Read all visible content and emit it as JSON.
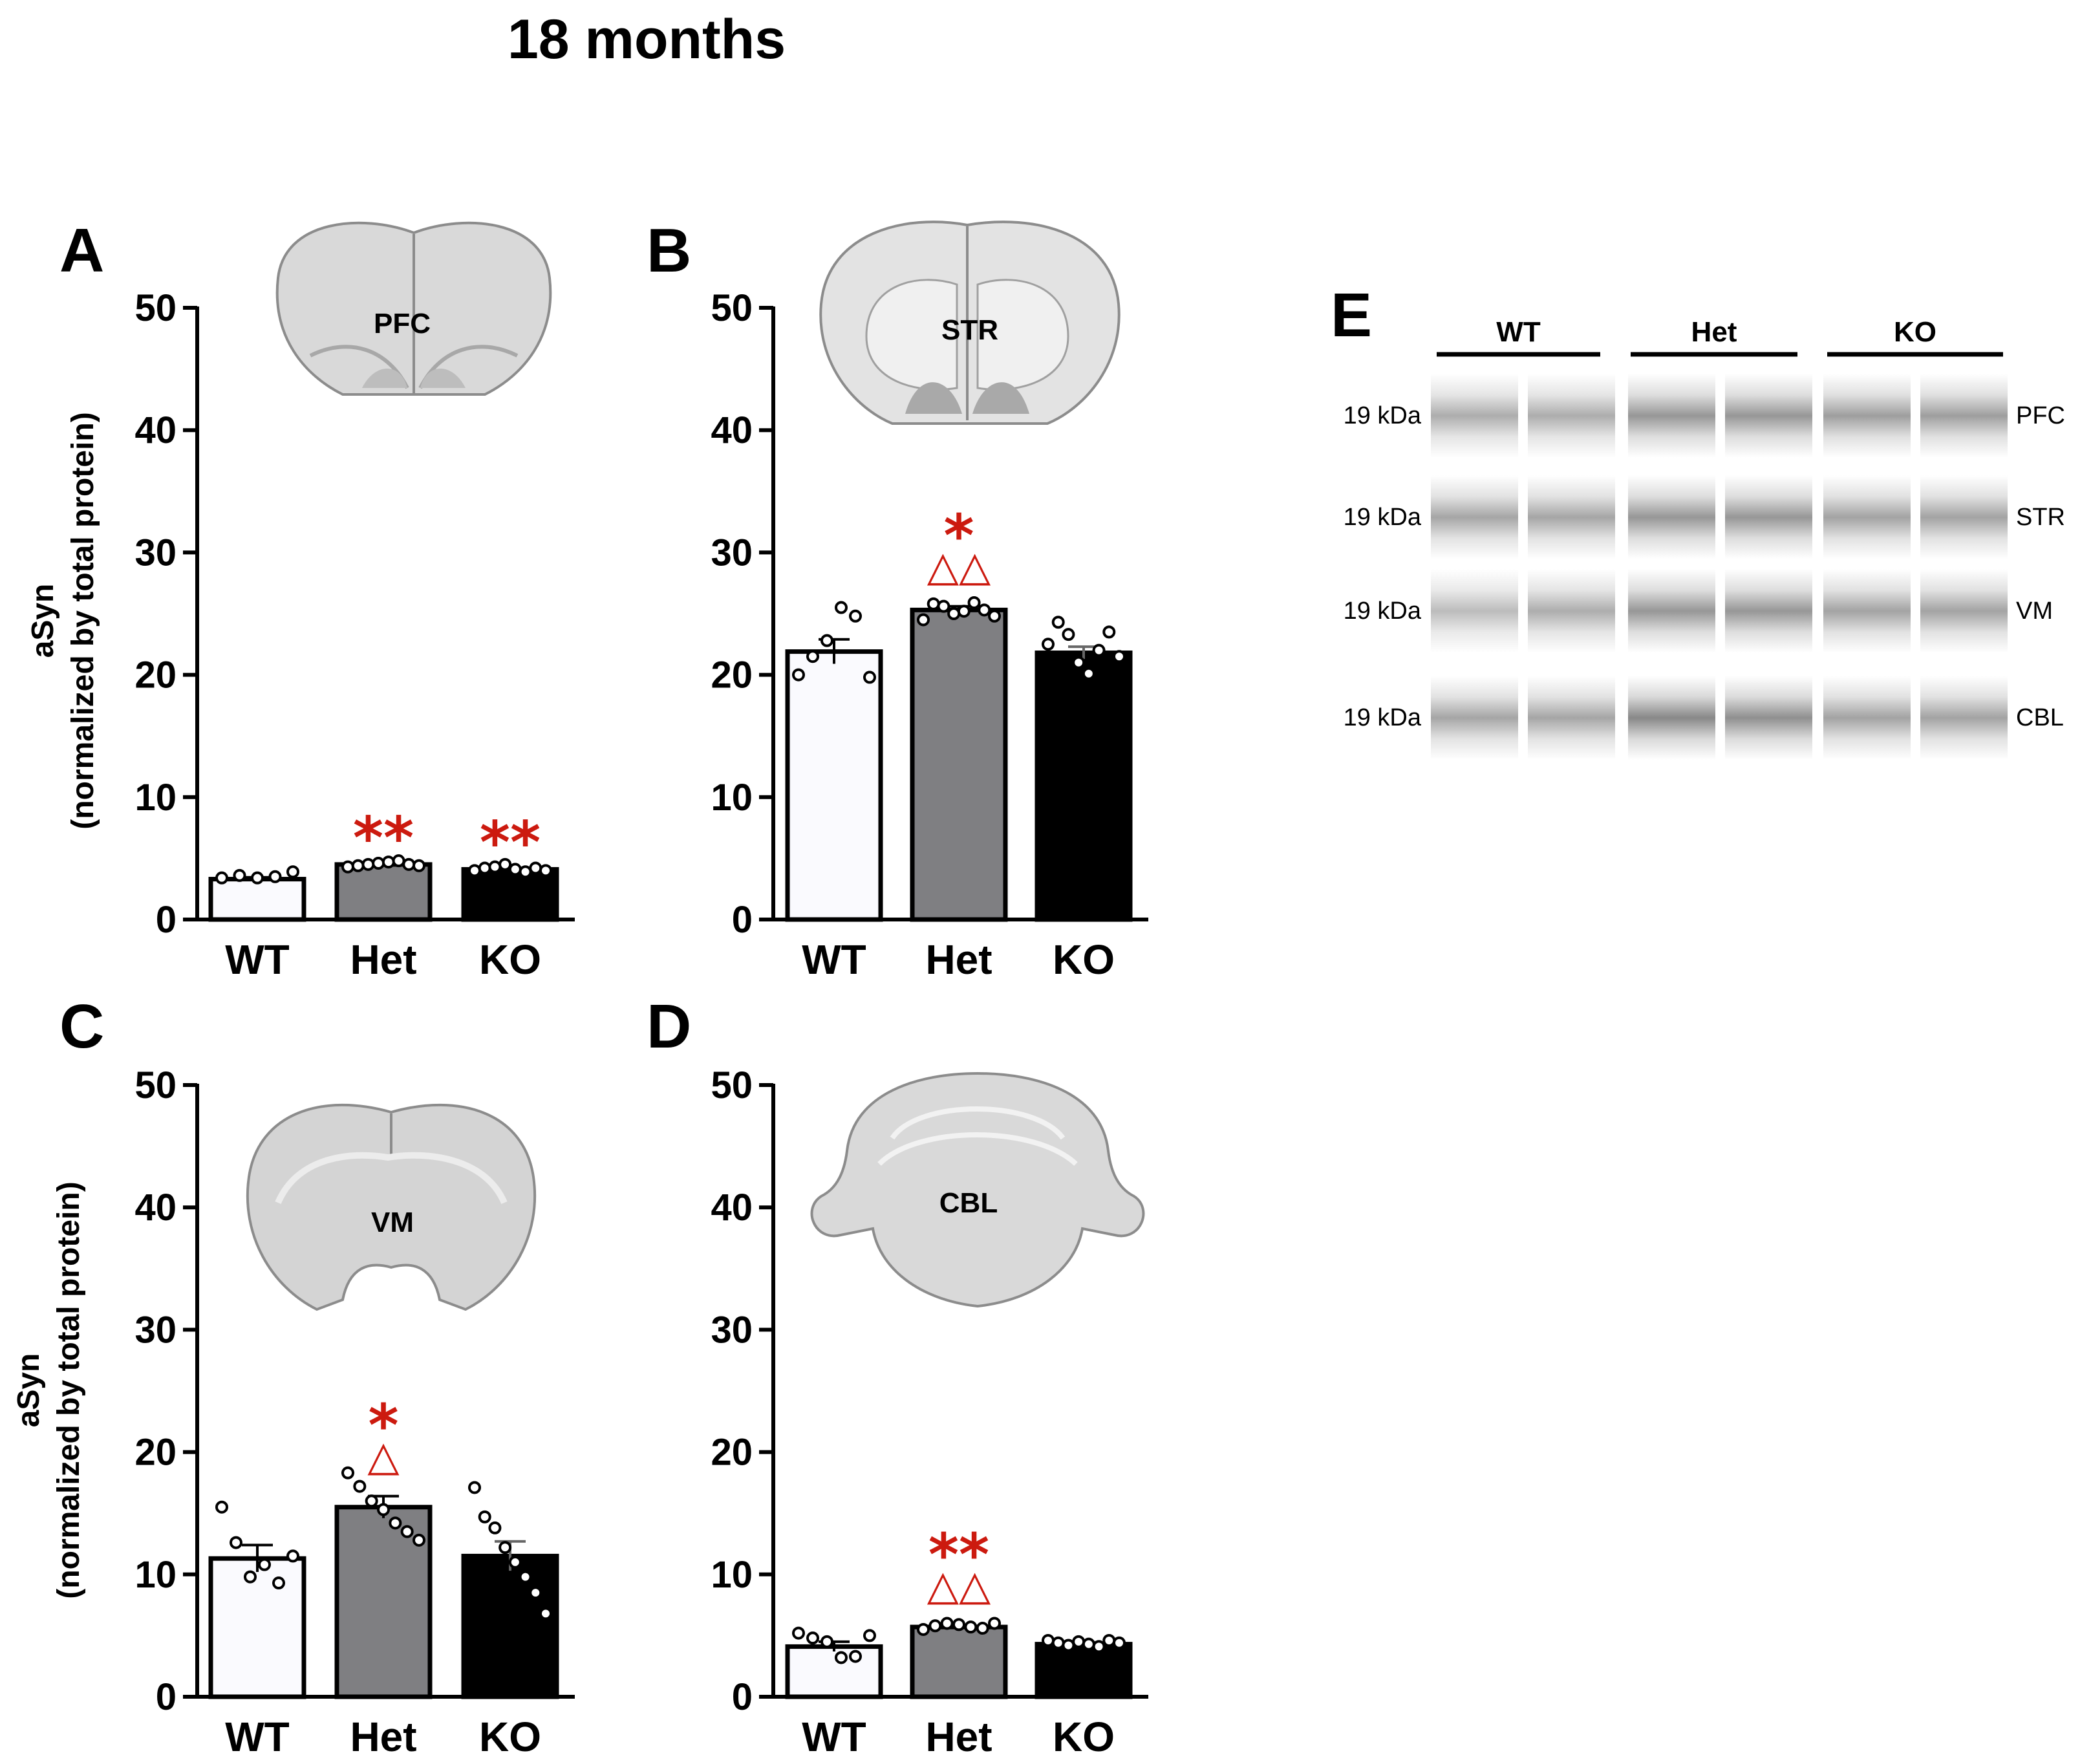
{
  "title": "18 months",
  "y_label_line1": "aSyn",
  "y_label_line2": "(normalized by total protein)",
  "colors": {
    "WT": "#fafafe",
    "Het": "#7f7f82",
    "KO": "#000000",
    "annotation": "#cc1a0f"
  },
  "chart_data": [
    {
      "panel": "A",
      "type": "bar",
      "region_label": "PFC",
      "categories": [
        "WT",
        "Het",
        "KO"
      ],
      "values": [
        3.3,
        4.5,
        4.1
      ],
      "sem": [
        0.15,
        0.1,
        0.12
      ],
      "points": [
        [
          3.4,
          3.6,
          3.4,
          3.5,
          3.9
        ],
        [
          4.3,
          4.4,
          4.5,
          4.6,
          4.7,
          4.8,
          4.5,
          4.4
        ],
        [
          4.0,
          4.2,
          4.3,
          4.5,
          4.1,
          3.9,
          4.2,
          4.0
        ]
      ],
      "annotations": [
        {
          "category": "Het",
          "stars": "**",
          "triangles": ""
        },
        {
          "category": "KO",
          "stars": "**",
          "triangles": ""
        }
      ],
      "ylim": [
        0,
        50
      ],
      "yticks": [
        "0",
        "10",
        "20",
        "30",
        "40",
        "50"
      ],
      "show_ylabel": true
    },
    {
      "panel": "B",
      "type": "bar",
      "region_label": "STR",
      "categories": [
        "WT",
        "Het",
        "KO"
      ],
      "values": [
        21.9,
        25.3,
        21.8
      ],
      "sem": [
        1.0,
        0.3,
        0.5
      ],
      "points": [
        [
          20.0,
          21.5,
          22.8,
          25.5,
          24.8,
          19.8
        ],
        [
          24.5,
          25.8,
          25.6,
          25.0,
          25.2,
          25.9,
          25.3,
          24.8
        ],
        [
          22.5,
          24.3,
          23.3,
          21.0,
          20.1,
          22.0,
          23.5,
          21.5
        ]
      ],
      "annotations": [
        {
          "category": "Het",
          "stars": "*",
          "triangles": "△△"
        }
      ],
      "ylim": [
        0,
        50
      ],
      "yticks": [
        "0",
        "10",
        "20",
        "30",
        "40",
        "50"
      ],
      "show_ylabel": false
    },
    {
      "panel": "C",
      "type": "bar",
      "region_label": "VM",
      "categories": [
        "WT",
        "Het",
        "KO"
      ],
      "values": [
        11.3,
        15.5,
        11.5
      ],
      "sem": [
        1.1,
        0.9,
        1.2
      ],
      "points": [
        [
          15.5,
          12.6,
          9.8,
          10.8,
          9.3,
          11.5
        ],
        [
          18.3,
          17.2,
          16.0,
          15.3,
          14.2,
          13.5,
          12.8
        ],
        [
          17.1,
          14.7,
          13.8,
          12.2,
          11.0,
          9.8,
          8.5,
          6.8
        ]
      ],
      "annotations": [
        {
          "category": "Het",
          "stars": "*",
          "triangles": "△"
        }
      ],
      "ylim": [
        0,
        50
      ],
      "yticks": [
        "0",
        "10",
        "20",
        "30",
        "40",
        "50"
      ],
      "show_ylabel": true
    },
    {
      "panel": "D",
      "type": "bar",
      "region_label": "CBL",
      "categories": [
        "WT",
        "Het",
        "KO"
      ],
      "values": [
        4.1,
        5.7,
        4.3
      ],
      "sem": [
        0.4,
        0.15,
        0.15
      ],
      "points": [
        [
          5.2,
          4.8,
          4.5,
          3.2,
          3.3,
          5.0
        ],
        [
          5.5,
          5.8,
          6.0,
          5.9,
          5.7,
          5.6,
          6.0
        ],
        [
          4.6,
          4.4,
          4.2,
          4.5,
          4.3,
          4.1,
          4.6,
          4.4
        ]
      ],
      "annotations": [
        {
          "category": "Het",
          "stars": "**",
          "triangles": "△△"
        }
      ],
      "ylim": [
        0,
        50
      ],
      "yticks": [
        "0",
        "10",
        "20",
        "30",
        "40",
        "50"
      ],
      "show_ylabel": false
    }
  ],
  "blot": {
    "panel": "E",
    "groups": [
      "WT",
      "Het",
      "KO"
    ],
    "rows": [
      {
        "size": "19 kDa",
        "region": "PFC",
        "intensity": [
          0.55,
          0.55,
          0.7,
          0.7,
          0.65,
          0.65
        ]
      },
      {
        "size": "19 kDa",
        "region": "STR",
        "intensity": [
          0.6,
          0.6,
          0.7,
          0.7,
          0.62,
          0.62
        ]
      },
      {
        "size": "19 kDa",
        "region": "VM",
        "intensity": [
          0.45,
          0.55,
          0.7,
          0.7,
          0.62,
          0.62
        ]
      },
      {
        "size": "19 kDa",
        "region": "CBL",
        "intensity": [
          0.6,
          0.6,
          0.8,
          0.75,
          0.62,
          0.62
        ]
      }
    ]
  }
}
